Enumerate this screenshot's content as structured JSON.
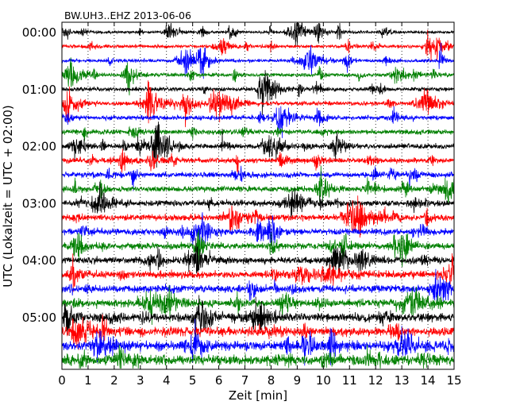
{
  "chart_data": {
    "type": "line",
    "title": "BW.UH3..EHZ 2013-06-06",
    "xlabel": "Zeit  [min]",
    "ylabel": "UTC (Lokalzeit = UTC + 02:00)",
    "xlim": [
      0,
      15
    ],
    "x_ticks": [
      "0",
      "1",
      "2",
      "3",
      "4",
      "5",
      "6",
      "7",
      "8",
      "9",
      "10",
      "11",
      "12",
      "13",
      "14",
      "15"
    ],
    "y_ticks": [
      "00:00",
      "01:00",
      "02:00",
      "03:00",
      "04:00",
      "05:00"
    ],
    "line_interval_min": 15,
    "num_lines": 24,
    "grid": "vertical dotted at every minute",
    "colors": [
      "#000000",
      "#ff0000",
      "#0000ff",
      "#008000"
    ]
  }
}
